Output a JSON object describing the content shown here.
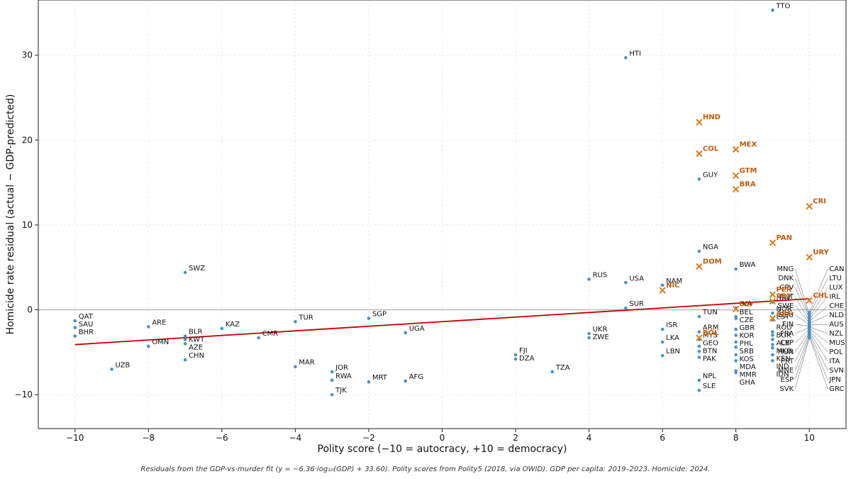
{
  "chart_data": {
    "type": "scatter",
    "xlabel": "Polity score (−10 = autocracy, +10 = democracy)",
    "ylabel": "Homicide rate residual (actual − GDP-predicted)",
    "xlim": [
      -11,
      11
    ],
    "ylim": [
      -14,
      36.5
    ],
    "xticks": [
      -10,
      -8,
      -6,
      -4,
      -2,
      0,
      2,
      4,
      6,
      8,
      10
    ],
    "yticks": [
      -10,
      0,
      10,
      20,
      30
    ],
    "xtick_labels": [
      "−10",
      "−8",
      "−6",
      "−4",
      "−2",
      "0",
      "2",
      "4",
      "6",
      "8",
      "10"
    ],
    "ytick_labels": [
      "−10",
      "0",
      "10",
      "20",
      "30"
    ],
    "grid": true,
    "zero_line": true,
    "fit_line": {
      "x": [
        -10,
        10
      ],
      "y": [
        -4.1,
        1.3
      ],
      "color": "#c00000"
    },
    "colors": {
      "point": "#4a90c8",
      "highlight": "#e07b1a",
      "highlight_label": "#c25a0a",
      "fit": "#c00000",
      "zero": "#bbbbbb",
      "grid": "#e6e6e6"
    },
    "points": [
      {
        "label": "TTO",
        "x": 9,
        "y": 35.3
      },
      {
        "label": "HTI",
        "x": 5,
        "y": 29.7
      },
      {
        "label": "GUY",
        "x": 7,
        "y": 15.4
      },
      {
        "label": "NGA",
        "x": 7,
        "y": 6.9
      },
      {
        "label": "BWA",
        "x": 8,
        "y": 4.8
      },
      {
        "label": "SWZ",
        "x": -7,
        "y": 4.4
      },
      {
        "label": "RUS",
        "x": 4,
        "y": 3.6
      },
      {
        "label": "USA",
        "x": 5,
        "y": 3.2
      },
      {
        "label": "NAM",
        "x": 6,
        "y": 2.9
      },
      {
        "label": "QAT",
        "x": -10,
        "y": -1.3
      },
      {
        "label": "SAU",
        "x": -10,
        "y": -2.1
      },
      {
        "label": "BHR",
        "x": -10,
        "y": -3.1
      },
      {
        "label": "UZB",
        "x": -9,
        "y": -7.0
      },
      {
        "label": "ARE",
        "x": -8,
        "y": -2.0
      },
      {
        "label": "OMN",
        "x": -8,
        "y": -4.3
      },
      {
        "label": "BLR",
        "x": -7,
        "y": -3.1
      },
      {
        "label": "KWT",
        "x": -7,
        "y": -3.5
      },
      {
        "label": "AZE",
        "x": -7,
        "y": -4.0
      },
      {
        "label": "CHN",
        "x": -7,
        "y": -5.9
      },
      {
        "label": "KAZ",
        "x": -6,
        "y": -2.2
      },
      {
        "label": "CMR",
        "x": -5,
        "y": -3.3
      },
      {
        "label": "TUR",
        "x": -4,
        "y": -1.4
      },
      {
        "label": "MAR",
        "x": -4,
        "y": -6.7
      },
      {
        "label": "JOR",
        "x": -3,
        "y": -7.3
      },
      {
        "label": "RWA",
        "x": -3,
        "y": -8.3
      },
      {
        "label": "TJK",
        "x": -3,
        "y": -10.0
      },
      {
        "label": "SGP",
        "x": -2,
        "y": -1.0
      },
      {
        "label": "MRT",
        "x": -2,
        "y": -8.5
      },
      {
        "label": "UGA",
        "x": -1,
        "y": -2.7
      },
      {
        "label": "AFG",
        "x": -1,
        "y": -8.4
      },
      {
        "label": "FJI",
        "x": 2,
        "y": -5.3
      },
      {
        "label": "DZA",
        "x": 2,
        "y": -5.8
      },
      {
        "label": "TZA",
        "x": 3,
        "y": -7.3
      },
      {
        "label": "UKR",
        "x": 4,
        "y": -2.8
      },
      {
        "label": "ZWE",
        "x": 4,
        "y": -3.3
      },
      {
        "label": "SUR",
        "x": 5,
        "y": 0.2
      },
      {
        "label": "ISR",
        "x": 6,
        "y": -2.3
      },
      {
        "label": "LKA",
        "x": 6,
        "y": -3.8
      },
      {
        "label": "LBN",
        "x": 6,
        "y": -5.4
      },
      {
        "label": "TUN",
        "x": 7,
        "y": -0.8
      },
      {
        "label": "ARM",
        "x": 7,
        "y": -2.6
      },
      {
        "label": "MYS",
        "x": 7,
        "y": -3.5
      },
      {
        "label": "GEO",
        "x": 7,
        "y": -4.3
      },
      {
        "label": "BTN",
        "x": 7,
        "y": -4.9
      },
      {
        "label": "PAK",
        "x": 7,
        "y": -5.6
      },
      {
        "label": "NPL",
        "x": 7,
        "y": -8.3
      },
      {
        "label": "SLE",
        "x": 7,
        "y": -9.5
      },
      {
        "label": "LVA",
        "x": 8,
        "y": 0.2
      },
      {
        "label": "BEL",
        "x": 8,
        "y": -0.8
      },
      {
        "label": "CZE",
        "x": 8,
        "y": -1.0
      },
      {
        "label": "GBR",
        "x": 8,
        "y": -2.3
      },
      {
        "label": "KOR",
        "x": 8,
        "y": -3.0
      },
      {
        "label": "PHL",
        "x": 8,
        "y": -3.8
      },
      {
        "label": "SRB",
        "x": 8,
        "y": -4.4
      },
      {
        "label": "KOS",
        "x": 8,
        "y": -5.3
      },
      {
        "label": "MDA",
        "x": 8,
        "y": -6.0
      },
      {
        "label": "MMR",
        "x": 8,
        "y": -7.2
      },
      {
        "label": "GHA",
        "x": 8,
        "y": -7.4
      },
      {
        "label": "HRV",
        "x": 9,
        "y": 0.9
      },
      {
        "label": "NOR",
        "x": 9,
        "y": -0.4
      },
      {
        "label": "EST",
        "x": 9,
        "y": -1.2
      },
      {
        "label": "ROU",
        "x": 9,
        "y": -2.6
      },
      {
        "label": "BGR",
        "x": 9,
        "y": -3.0
      },
      {
        "label": "ALB",
        "x": 9,
        "y": -3.5
      },
      {
        "label": "MKD",
        "x": 9,
        "y": -4.1
      },
      {
        "label": "KEN",
        "x": 9,
        "y": -4.5
      },
      {
        "label": "IND",
        "x": 9,
        "y": -5.3
      },
      {
        "label": "IDN",
        "x": 9,
        "y": -6.0
      },
      {
        "label": "CAN",
        "x": 10,
        "y": -0.3
      },
      {
        "label": "MNG",
        "x": 10,
        "y": -0.5
      },
      {
        "label": "LTU",
        "x": 10,
        "y": -0.6
      },
      {
        "label": "DNK",
        "x": 10,
        "y": -0.8
      },
      {
        "label": "LUX",
        "x": 10,
        "y": -0.9
      },
      {
        "label": "CPV",
        "x": 10,
        "y": -1.0
      },
      {
        "label": "IRL",
        "x": 10,
        "y": -1.1
      },
      {
        "label": "AUT",
        "x": 10,
        "y": -1.3
      },
      {
        "label": "CHE",
        "x": 10,
        "y": -1.4
      },
      {
        "label": "SWE",
        "x": 10,
        "y": -1.5
      },
      {
        "label": "NLD",
        "x": 10,
        "y": -1.6
      },
      {
        "label": "DEU",
        "x": 10,
        "y": -1.7
      },
      {
        "label": "AUS",
        "x": 10,
        "y": -1.8
      },
      {
        "label": "FIN",
        "x": 10,
        "y": -1.9
      },
      {
        "label": "NZL",
        "x": 10,
        "y": -2.0
      },
      {
        "label": "FRA",
        "x": 10,
        "y": -2.1
      },
      {
        "label": "MUS",
        "x": 10,
        "y": -2.2
      },
      {
        "label": "CYP",
        "x": 10,
        "y": -2.3
      },
      {
        "label": "POL",
        "x": 10,
        "y": -2.4
      },
      {
        "label": "HUN",
        "x": 10,
        "y": -2.5
      },
      {
        "label": "ITA",
        "x": 10,
        "y": -2.6
      },
      {
        "label": "PRT",
        "x": 10,
        "y": -2.7
      },
      {
        "label": "SVN",
        "x": 10,
        "y": -2.8
      },
      {
        "label": "MNE",
        "x": 10,
        "y": -2.9
      },
      {
        "label": "JPN",
        "x": 10,
        "y": -3.0
      },
      {
        "label": "ESP",
        "x": 10,
        "y": -3.1
      },
      {
        "label": "GRC",
        "x": 10,
        "y": -3.2
      },
      {
        "label": "SVK",
        "x": 10,
        "y": -3.3
      }
    ],
    "highlighted": [
      {
        "label": "HND",
        "x": 7,
        "y": 22.1
      },
      {
        "label": "COL",
        "x": 7,
        "y": 18.4
      },
      {
        "label": "MEX",
        "x": 8,
        "y": 18.9
      },
      {
        "label": "GTM",
        "x": 8,
        "y": 15.8
      },
      {
        "label": "BRA",
        "x": 8,
        "y": 14.2
      },
      {
        "label": "CRI",
        "x": 10,
        "y": 12.2
      },
      {
        "label": "PAN",
        "x": 9,
        "y": 7.9
      },
      {
        "label": "URY",
        "x": 10,
        "y": 6.2
      },
      {
        "label": "DOM",
        "x": 7,
        "y": 5.1
      },
      {
        "label": "NIC",
        "x": 6,
        "y": 2.3
      },
      {
        "label": "PER",
        "x": 9,
        "y": 1.8
      },
      {
        "label": "CHL",
        "x": 10,
        "y": 1.1
      },
      {
        "label": "SLV",
        "x": 8,
        "y": 0.1
      },
      {
        "label": "PRY",
        "x": 9,
        "y": 1.0
      },
      {
        "label": "ARG",
        "x": 9,
        "y": -1.0
      },
      {
        "label": "BOL",
        "x": 7,
        "y": -3.3
      }
    ],
    "caption": "Residuals from the GDP-vs-murder fit (y = −6.36·log₁₀(GDP) + 33.60). Polity scores from Polity5 (2018, via OWID).  GDP per capita: 2019–2023.  Homicide: 2024."
  }
}
